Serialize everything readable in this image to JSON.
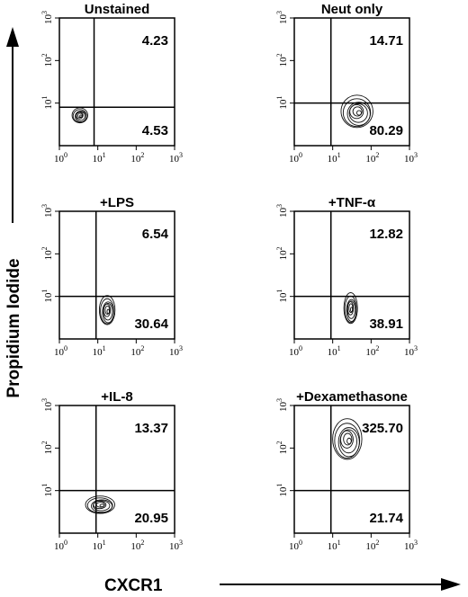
{
  "figure": {
    "xlabel": "CXCR1",
    "ylabel": "Propidium Iodide"
  },
  "chart_data": [
    {
      "type": "scatter",
      "title": "Unstained",
      "xscale": "log",
      "yscale": "log",
      "xlim": [
        1,
        1000
      ],
      "ylim": [
        1,
        1000
      ],
      "x_ticks": [
        "10",
        "10",
        "10",
        "10"
      ],
      "x_tick_exponents": [
        "0",
        "1",
        "2",
        "3"
      ],
      "y_ticks": [
        "10",
        "10",
        "10"
      ],
      "y_tick_exponents": [
        "1",
        "2",
        "3"
      ],
      "gate": {
        "x": 8,
        "y": 8
      },
      "quadrant_values": {
        "upper_right": "4.23",
        "lower_right": "4.53"
      },
      "population": {
        "center": [
          3.5,
          5
        ],
        "spread": [
          1.6,
          1.5
        ]
      }
    },
    {
      "type": "scatter",
      "title": "Neut only",
      "xscale": "log",
      "yscale": "log",
      "xlim": [
        1,
        1000
      ],
      "ylim": [
        1,
        1000
      ],
      "x_ticks": [
        "10",
        "10",
        "10",
        "10"
      ],
      "x_tick_exponents": [
        "0",
        "1",
        "2",
        "3"
      ],
      "y_ticks": [
        "10",
        "10",
        "10"
      ],
      "y_tick_exponents": [
        "1",
        "2",
        "3"
      ],
      "gate": {
        "x": 9,
        "y": 10
      },
      "quadrant_values": {
        "upper_right": "14.71",
        "lower_right": "80.29"
      },
      "population": {
        "center": [
          45,
          6
        ],
        "spread": [
          2.6,
          2.4
        ]
      }
    },
    {
      "type": "scatter",
      "title": "+LPS",
      "xscale": "log",
      "yscale": "log",
      "xlim": [
        1,
        1000
      ],
      "ylim": [
        1,
        1000
      ],
      "x_ticks": [
        "10",
        "10",
        "10",
        "10"
      ],
      "x_tick_exponents": [
        "0",
        "1",
        "2",
        "3"
      ],
      "y_ticks": [
        "10",
        "10",
        "10"
      ],
      "y_tick_exponents": [
        "1",
        "2",
        "3"
      ],
      "gate": {
        "x": 9,
        "y": 10
      },
      "quadrant_values": {
        "upper_right": "6.54",
        "lower_right": "30.64"
      },
      "population": {
        "center": [
          18,
          4.5
        ],
        "spread": [
          1.6,
          2.2
        ]
      }
    },
    {
      "type": "scatter",
      "title": "+TNF-α",
      "xscale": "log",
      "yscale": "log",
      "xlim": [
        1,
        1000
      ],
      "ylim": [
        1,
        1000
      ],
      "x_ticks": [
        "10",
        "10",
        "10",
        "10"
      ],
      "x_tick_exponents": [
        "0",
        "1",
        "2",
        "3"
      ],
      "y_ticks": [
        "10",
        "10",
        "10"
      ],
      "y_tick_exponents": [
        "1",
        "2",
        "3"
      ],
      "gate": {
        "x": 9,
        "y": 10
      },
      "quadrant_values": {
        "upper_right": "12.82",
        "lower_right": "38.91"
      },
      "population": {
        "center": [
          30,
          5
        ],
        "spread": [
          1.5,
          2.3
        ]
      }
    },
    {
      "type": "scatter",
      "title": "+IL-8",
      "xscale": "log",
      "yscale": "log",
      "xlim": [
        1,
        1000
      ],
      "ylim": [
        1,
        1000
      ],
      "x_ticks": [
        "10",
        "10",
        "10",
        "10"
      ],
      "x_tick_exponents": [
        "0",
        "1",
        "2",
        "3"
      ],
      "y_ticks": [
        "10",
        "10",
        "10"
      ],
      "y_tick_exponents": [
        "1",
        "2",
        "3"
      ],
      "gate": {
        "x": 9,
        "y": 10
      },
      "quadrant_values": {
        "upper_right": "13.37",
        "lower_right": "20.95"
      },
      "population": {
        "center": [
          12,
          4.5
        ],
        "spread": [
          2.4,
          1.6
        ]
      }
    },
    {
      "type": "scatter",
      "title": "+Dexamethasone",
      "xscale": "log",
      "yscale": "log",
      "xlim": [
        1,
        1000
      ],
      "ylim": [
        1,
        1000
      ],
      "x_ticks": [
        "10",
        "10",
        "10",
        "10"
      ],
      "x_tick_exponents": [
        "0",
        "1",
        "2",
        "3"
      ],
      "y_ticks": [
        "10",
        "10",
        "10"
      ],
      "y_tick_exponents": [
        "1",
        "2",
        "3"
      ],
      "gate": {
        "x": 9,
        "y": 10
      },
      "quadrant_values": {
        "upper_right": "325.70",
        "lower_right": "21.74"
      },
      "population": {
        "center": [
          25,
          150
        ],
        "spread": [
          2.4,
          3.0
        ]
      }
    }
  ]
}
